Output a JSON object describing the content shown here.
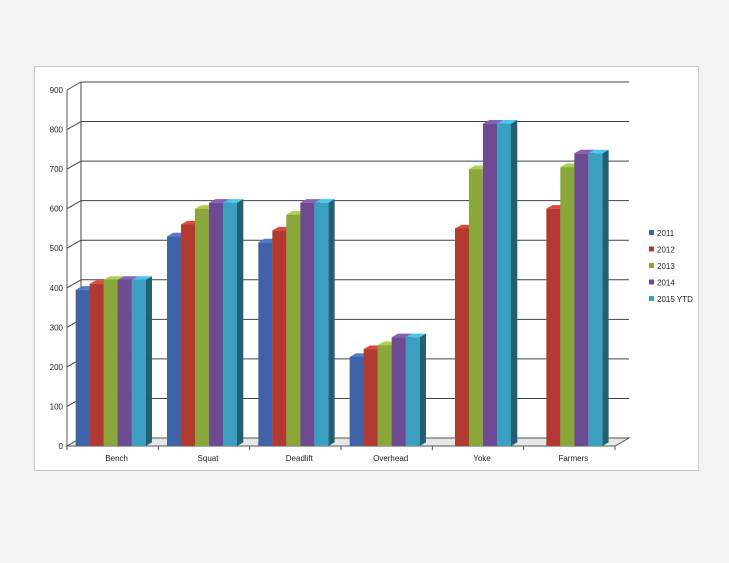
{
  "chart_data": {
    "type": "bar",
    "categories": [
      "Bench",
      "Squat",
      "Deadlift",
      "Overhead",
      "Yoke",
      "Farmers"
    ],
    "ylim": [
      0,
      900
    ],
    "yticks": [
      0,
      100,
      200,
      300,
      400,
      500,
      600,
      700,
      800,
      900
    ],
    "grid": true,
    "legend_position": "right",
    "series": [
      {
        "name": "2011",
        "color": "#3f62a8",
        "values": [
          395,
          530,
          515,
          225,
          null,
          null
        ]
      },
      {
        "name": "2012",
        "color": "#b23a30",
        "values": [
          410,
          560,
          545,
          245,
          550,
          600
        ]
      },
      {
        "name": "2013",
        "color": "#8aa83a",
        "values": [
          420,
          600,
          585,
          255,
          700,
          705
        ]
      },
      {
        "name": "2014",
        "color": "#6e4a93",
        "values": [
          420,
          615,
          615,
          275,
          815,
          740
        ]
      },
      {
        "name": "2015 YTD",
        "color": "#3a9fc0",
        "values": [
          420,
          615,
          615,
          275,
          815,
          740
        ]
      }
    ]
  }
}
